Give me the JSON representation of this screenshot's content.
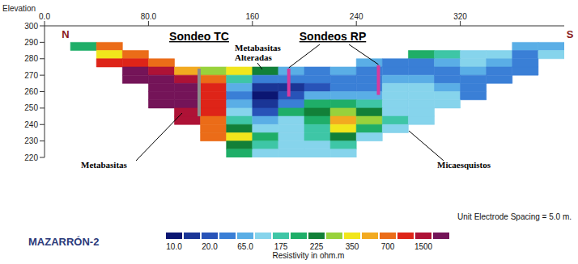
{
  "chart_data": {
    "type": "heatmap",
    "title": "MAZARRÓN-2",
    "y_label": "Elevation",
    "x": [
      10,
      30,
      50,
      70,
      90,
      110,
      130,
      150,
      170,
      190,
      210,
      230,
      250,
      270,
      290,
      310,
      330,
      350,
      370,
      390
    ],
    "y": [
      287.5,
      282.5,
      277.5,
      272.5,
      267.5,
      262.5,
      257.5,
      252.5,
      247.5,
      242.5,
      237.5,
      232.5,
      227.5,
      222.5
    ],
    "values": [
      [
        null,
        200,
        600,
        null,
        null,
        null,
        null,
        null,
        null,
        null,
        null,
        null,
        null,
        null,
        null,
        null,
        null,
        null,
        60,
        80
      ],
      [
        null,
        null,
        350,
        700,
        null,
        null,
        null,
        null,
        null,
        null,
        null,
        null,
        null,
        null,
        200,
        150,
        100,
        90,
        40,
        90
      ],
      [
        null,
        null,
        1000,
        900,
        700,
        null,
        null,
        null,
        null,
        null,
        null,
        null,
        70,
        45,
        35,
        60,
        90,
        80,
        30,
        null
      ],
      [
        null,
        null,
        null,
        2500,
        1500,
        500,
        300,
        350,
        250,
        60,
        40,
        80,
        40,
        30,
        28,
        40,
        60,
        45,
        40,
        null
      ],
      [
        null,
        null,
        null,
        2500,
        2500,
        1500,
        700,
        150,
        30,
        30,
        35,
        45,
        35,
        60,
        80,
        45,
        40,
        35,
        null,
        null
      ],
      [
        null,
        null,
        null,
        null,
        2500,
        2500,
        1000,
        60,
        13,
        15,
        25,
        35,
        45,
        100,
        110,
        80,
        35,
        null,
        null,
        null
      ],
      [
        null,
        null,
        null,
        null,
        2500,
        2500,
        1000,
        40,
        11,
        20,
        60,
        60,
        80,
        110,
        120,
        110,
        45,
        null,
        null,
        null
      ],
      [
        null,
        null,
        null,
        null,
        2500,
        2000,
        1000,
        50,
        13,
        35,
        200,
        210,
        180,
        120,
        110,
        110,
        null,
        null,
        null,
        null
      ],
      [
        null,
        null,
        null,
        null,
        null,
        1800,
        900,
        90,
        25,
        200,
        230,
        280,
        220,
        130,
        100,
        null,
        null,
        null,
        null,
        null
      ],
      [
        null,
        null,
        null,
        null,
        null,
        1500,
        800,
        180,
        60,
        120,
        200,
        500,
        300,
        150,
        95,
        null,
        null,
        null,
        null,
        null
      ],
      [
        null,
        null,
        null,
        null,
        null,
        null,
        700,
        250,
        120,
        100,
        175,
        400,
        200,
        110,
        null,
        null,
        null,
        null,
        null,
        null
      ],
      [
        null,
        null,
        null,
        null,
        null,
        null,
        700,
        350,
        200,
        120,
        150,
        250,
        120,
        null,
        null,
        null,
        null,
        null,
        null,
        null
      ],
      [
        null,
        null,
        null,
        null,
        null,
        null,
        null,
        250,
        150,
        100,
        110,
        160,
        null,
        null,
        null,
        null,
        null,
        null,
        null,
        null
      ],
      [
        null,
        null,
        null,
        null,
        null,
        null,
        null,
        200,
        100,
        90,
        90,
        100,
        null,
        null,
        null,
        null,
        null,
        null,
        null,
        null
      ]
    ],
    "xlim": [
      0,
      400
    ],
    "xticks": [
      {
        "value": 0,
        "label": "0.0"
      },
      {
        "value": 80,
        "label": "80.0"
      },
      160,
      240,
      320
    ],
    "ylim": [
      220,
      300
    ],
    "yticks": [
      220,
      230,
      240,
      250,
      260,
      270,
      280,
      290,
      300
    ],
    "colorbar": {
      "label": "Resistivity in ohm.m",
      "ticks": [
        {
          "value": 10,
          "label": "10.0"
        },
        {
          "value": 20,
          "label": "20.0"
        },
        {
          "value": 65,
          "label": "65.0"
        },
        175,
        225,
        350,
        700,
        1500
      ],
      "colors": [
        "#0b1672",
        "#1a3596",
        "#2853b8",
        "#3a7fd6",
        "#5aaee6",
        "#86d4ec",
        "#3ec6a6",
        "#1fae68",
        "#128038",
        "#98d23c",
        "#f1e61c",
        "#f2aa20",
        "#eb6c18",
        "#de2418",
        "#ae1236",
        "#741458"
      ]
    },
    "boreholes": [
      {
        "label": "Sondeo TC",
        "color": "#8c8c8c",
        "wells": [
          {
            "x": 119,
            "top": 274,
            "bottom": 245
          }
        ]
      },
      {
        "label": "Sondeos RP",
        "color": "#d63a9e",
        "wells": [
          {
            "x": 188,
            "top": 274,
            "bottom": 257
          },
          {
            "x": 257,
            "top": 276,
            "bottom": 258
          }
        ]
      }
    ],
    "annotations": [
      {
        "text": "N"
      },
      {
        "text": "S"
      },
      {
        "text": "Metabasitas Alteradas"
      },
      {
        "text": "Metabasitas"
      },
      {
        "text": "Micaesquistos"
      },
      {
        "text": "Unit Electrode Spacing = 5.0 m."
      }
    ]
  }
}
